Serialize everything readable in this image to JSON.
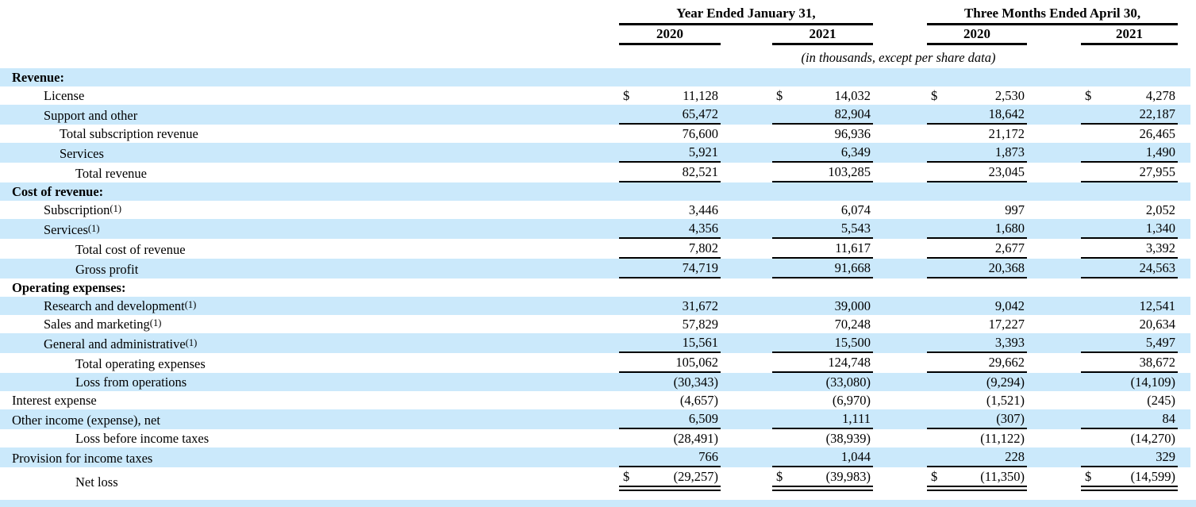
{
  "dollar_sign": "$",
  "colors": {
    "stripe_blue": "#cbe9fb",
    "rule_black": "#000000"
  },
  "header": {
    "group1": "Year Ended January 31,",
    "group2": "Three Months Ended April 30,",
    "cols": [
      "2020",
      "2021",
      "2020",
      "2021"
    ],
    "units_note": "(in thousands, except per share data)"
  },
  "rows": [
    {
      "label": "Revenue:",
      "section": true,
      "indent": 0,
      "bg": "blue",
      "values": []
    },
    {
      "label": "License",
      "indent": 1,
      "bg": "white",
      "dollar": true,
      "values": [
        "11,128",
        "14,032",
        "2,530",
        "4,278"
      ]
    },
    {
      "label": "Support and other",
      "indent": 1,
      "bg": "blue",
      "rule": "single",
      "values": [
        "65,472",
        "82,904",
        "18,642",
        "22,187"
      ]
    },
    {
      "label": "Total subscription revenue",
      "indent": 2,
      "bg": "white",
      "values": [
        "76,600",
        "96,936",
        "21,172",
        "26,465"
      ]
    },
    {
      "label": "Services",
      "indent": 2,
      "bg": "blue",
      "rule": "single",
      "values": [
        "5,921",
        "6,349",
        "1,873",
        "1,490"
      ]
    },
    {
      "label": "Total revenue",
      "indent": 3,
      "bg": "white",
      "rule": "single",
      "values": [
        "82,521",
        "103,285",
        "23,045",
        "27,955"
      ]
    },
    {
      "label": "Cost of revenue:",
      "section": true,
      "indent": 0,
      "bg": "blue",
      "values": []
    },
    {
      "label": "Subscription",
      "sup": "(1)",
      "indent": 1,
      "bg": "white",
      "values": [
        "3,446",
        "6,074",
        "997",
        "2,052"
      ]
    },
    {
      "label": "Services",
      "sup": "(1)",
      "indent": 1,
      "bg": "blue",
      "rule": "single",
      "values": [
        "4,356",
        "5,543",
        "1,680",
        "1,340"
      ]
    },
    {
      "label": "Total cost of revenue",
      "indent": 3,
      "bg": "white",
      "rule": "single",
      "values": [
        "7,802",
        "11,617",
        "2,677",
        "3,392"
      ]
    },
    {
      "label": "Gross profit",
      "indent": 3,
      "bg": "blue",
      "rule": "single",
      "values": [
        "74,719",
        "91,668",
        "20,368",
        "24,563"
      ]
    },
    {
      "label": "Operating expenses:",
      "section": true,
      "indent": 0,
      "bg": "white",
      "values": []
    },
    {
      "label": "Research and development",
      "sup": "(1)",
      "indent": 1,
      "bg": "blue",
      "values": [
        "31,672",
        "39,000",
        "9,042",
        "12,541"
      ]
    },
    {
      "label": "Sales and marketing",
      "sup": "(1)",
      "indent": 1,
      "bg": "white",
      "values": [
        "57,829",
        "70,248",
        "17,227",
        "20,634"
      ]
    },
    {
      "label": "General and administrative",
      "sup": "(1)",
      "indent": 1,
      "bg": "blue",
      "rule": "single",
      "values": [
        "15,561",
        "15,500",
        "3,393",
        "5,497"
      ]
    },
    {
      "label": "Total operating expenses",
      "indent": 3,
      "bg": "white",
      "rule": "single",
      "values": [
        "105,062",
        "124,748",
        "29,662",
        "38,672"
      ]
    },
    {
      "label": "Loss from operations",
      "indent": 3,
      "bg": "blue",
      "values": [
        "(30,343)",
        "(33,080)",
        "(9,294)",
        "(14,109)"
      ]
    },
    {
      "label": "Interest expense",
      "indent": 0,
      "bg": "white",
      "values": [
        "(4,657)",
        "(6,970)",
        "(1,521)",
        "(245)"
      ]
    },
    {
      "label": "Other income (expense), net",
      "indent": 0,
      "bg": "blue",
      "rule": "single",
      "values": [
        "6,509",
        "1,111",
        "(307)",
        "84"
      ]
    },
    {
      "label": "Loss before income taxes",
      "indent": 3,
      "bg": "white",
      "values": [
        "(28,491)",
        "(38,939)",
        "(11,122)",
        "(14,270)"
      ]
    },
    {
      "label": "Provision for income taxes",
      "indent": 0,
      "bg": "blue",
      "rule": "single",
      "values": [
        "766",
        "1,044",
        "228",
        "329"
      ]
    },
    {
      "label": "Net loss",
      "indent": 3,
      "bg": "white",
      "dollar": true,
      "rule": "double",
      "values": [
        "(29,257)",
        "(39,983)",
        "(11,350)",
        "(14,599)"
      ]
    }
  ]
}
